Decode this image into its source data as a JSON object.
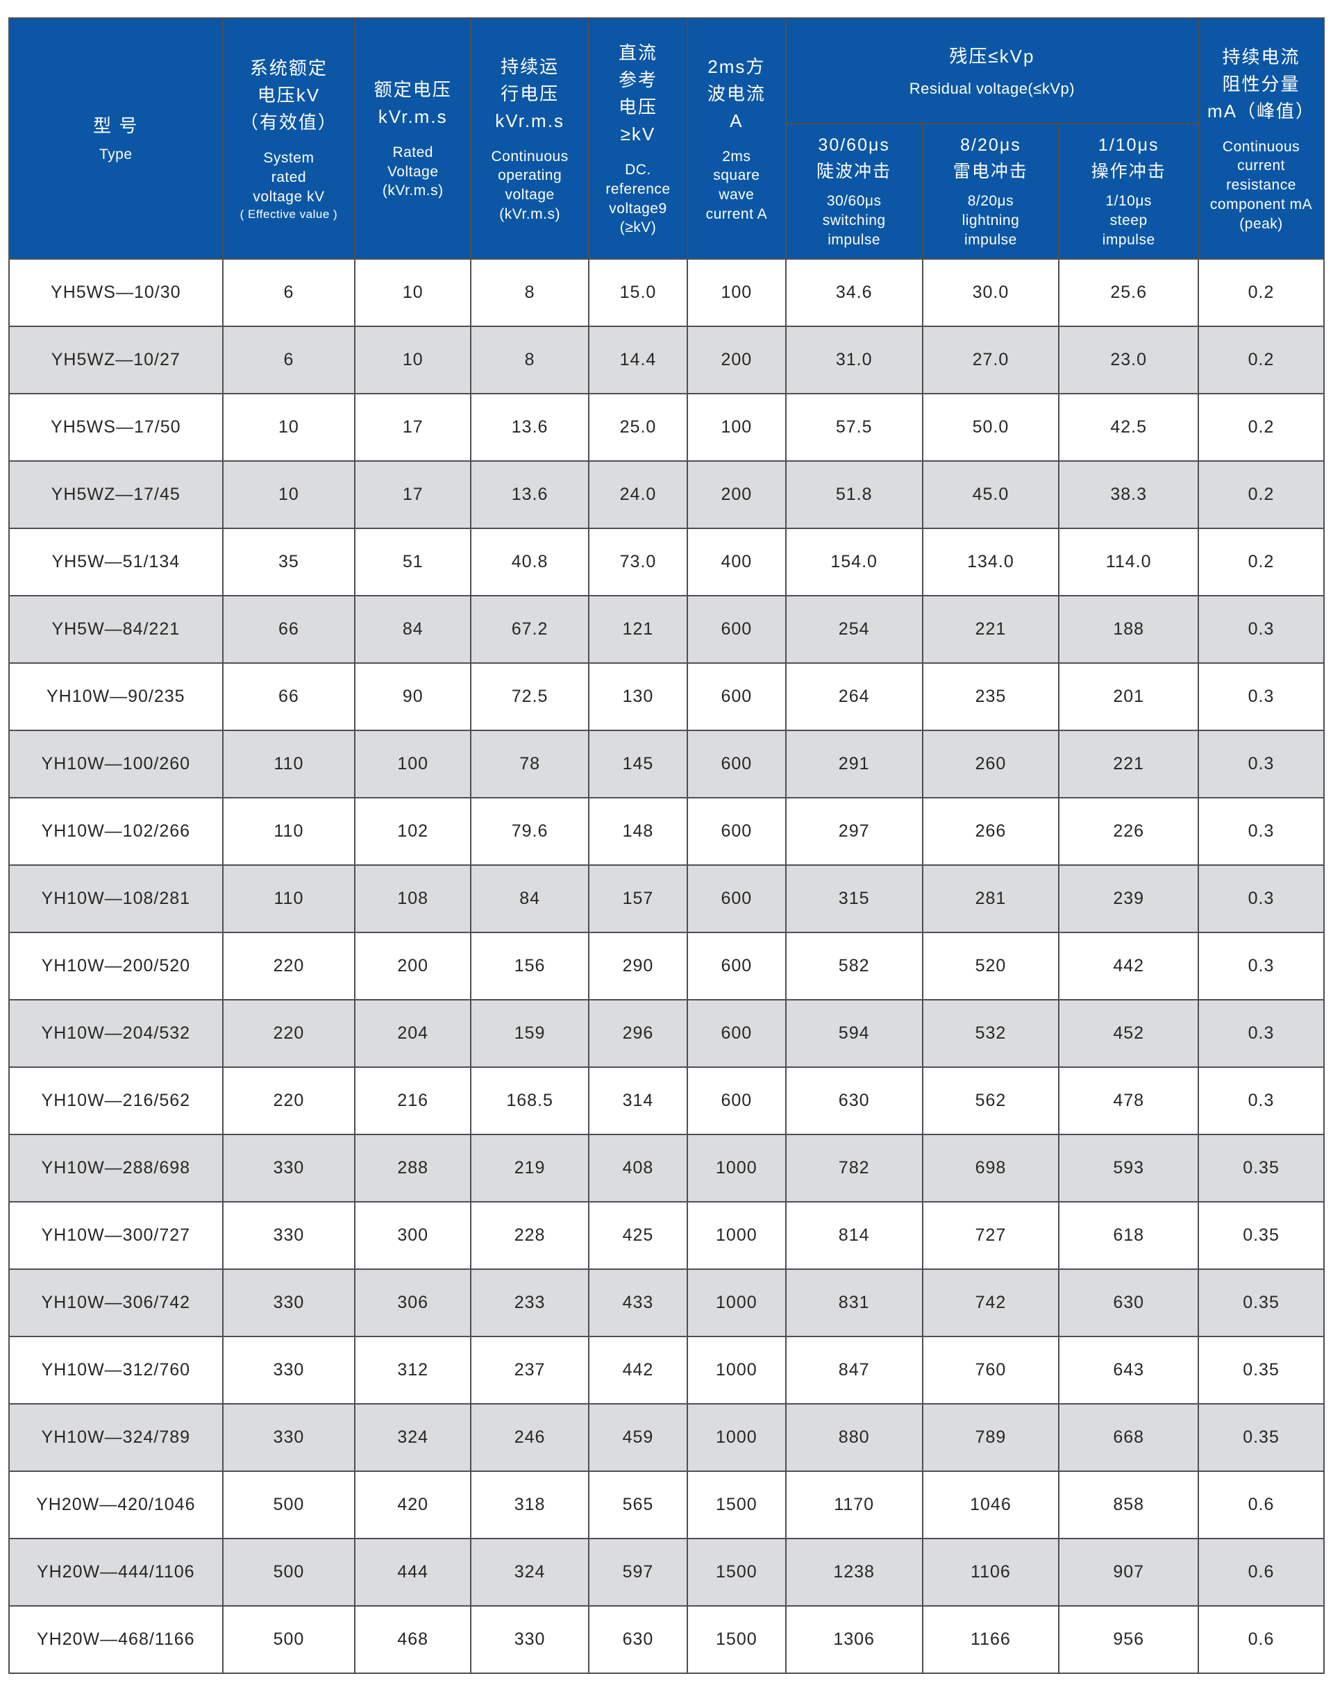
{
  "colors": {
    "header_bg": "#0c57a5",
    "header_text": "#ffffff",
    "row_bg": "#ffffff",
    "row_alt_bg": "#dbdcdd",
    "border": "#4d4f54",
    "cell_text": "#262626",
    "page_bg": "#ffffff"
  },
  "table": {
    "header": {
      "type": {
        "zh": "型 号",
        "en": "Type"
      },
      "system_rated_voltage": {
        "zh": "系统额定\n电压kV\n（有效值）",
        "en": "System\nrated\nvoltage kV",
        "en_small": "( Effective value )"
      },
      "rated_voltage": {
        "zh": "额定电压\nkVr.m.s",
        "en": "Rated\nVoltage\n(kVr.m.s)"
      },
      "continuous_operating_voltage": {
        "zh": "持续运\n行电压\nkVr.m.s",
        "en": "Continuous\noperating\nvoltage\n(kVr.m.s)"
      },
      "dc_reference_voltage": {
        "zh": "直流\n参考\n电压\n≥kV",
        "en": "DC.\nreference\nvoltage9\n(≥kV)"
      },
      "square_wave_current": {
        "zh": "2ms方\n波电流\nA",
        "en": "2ms\nsquare\nwave\ncurrent A"
      },
      "residual_voltage_group": {
        "zh": "残压≤kVp",
        "en": "Residual voltage(≤kVp)"
      },
      "switching_impulse": {
        "zh": "30/60μs\n陡波冲击",
        "en": "30/60μs\nswitching\nimpulse"
      },
      "lightning_impulse": {
        "zh": "8/20μs\n雷电冲击",
        "en": "8/20μs\nlightning\nimpulse"
      },
      "steep_impulse": {
        "zh": "1/10μs\n操作冲击",
        "en": "1/10μs\nsteep\nimpulse"
      },
      "continuous_current": {
        "zh": "持续电流\n阻性分量\nmA（峰值）",
        "en": "Continuous\ncurrent\nresistance\ncomponent mA\n(peak)"
      }
    },
    "rows": [
      [
        "YH5WS—10/30",
        "6",
        "10",
        "8",
        "15.0",
        "100",
        "34.6",
        "30.0",
        "25.6",
        "0.2"
      ],
      [
        "YH5WZ—10/27",
        "6",
        "10",
        "8",
        "14.4",
        "200",
        "31.0",
        "27.0",
        "23.0",
        "0.2"
      ],
      [
        "YH5WS—17/50",
        "10",
        "17",
        "13.6",
        "25.0",
        "100",
        "57.5",
        "50.0",
        "42.5",
        "0.2"
      ],
      [
        "YH5WZ—17/45",
        "10",
        "17",
        "13.6",
        "24.0",
        "200",
        "51.8",
        "45.0",
        "38.3",
        "0.2"
      ],
      [
        "YH5W—51/134",
        "35",
        "51",
        "40.8",
        "73.0",
        "400",
        "154.0",
        "134.0",
        "114.0",
        "0.2"
      ],
      [
        "YH5W—84/221",
        "66",
        "84",
        "67.2",
        "121",
        "600",
        "254",
        "221",
        "188",
        "0.3"
      ],
      [
        "YH10W—90/235",
        "66",
        "90",
        "72.5",
        "130",
        "600",
        "264",
        "235",
        "201",
        "0.3"
      ],
      [
        "YH10W—100/260",
        "110",
        "100",
        "78",
        "145",
        "600",
        "291",
        "260",
        "221",
        "0.3"
      ],
      [
        "YH10W—102/266",
        "110",
        "102",
        "79.6",
        "148",
        "600",
        "297",
        "266",
        "226",
        "0.3"
      ],
      [
        "YH10W—108/281",
        "110",
        "108",
        "84",
        "157",
        "600",
        "315",
        "281",
        "239",
        "0.3"
      ],
      [
        "YH10W—200/520",
        "220",
        "200",
        "156",
        "290",
        "600",
        "582",
        "520",
        "442",
        "0.3"
      ],
      [
        "YH10W—204/532",
        "220",
        "204",
        "159",
        "296",
        "600",
        "594",
        "532",
        "452",
        "0.3"
      ],
      [
        "YH10W—216/562",
        "220",
        "216",
        "168.5",
        "314",
        "600",
        "630",
        "562",
        "478",
        "0.3"
      ],
      [
        "YH10W—288/698",
        "330",
        "288",
        "219",
        "408",
        "1000",
        "782",
        "698",
        "593",
        "0.35"
      ],
      [
        "YH10W—300/727",
        "330",
        "300",
        "228",
        "425",
        "1000",
        "814",
        "727",
        "618",
        "0.35"
      ],
      [
        "YH10W—306/742",
        "330",
        "306",
        "233",
        "433",
        "1000",
        "831",
        "742",
        "630",
        "0.35"
      ],
      [
        "YH10W—312/760",
        "330",
        "312",
        "237",
        "442",
        "1000",
        "847",
        "760",
        "643",
        "0.35"
      ],
      [
        "YH10W—324/789",
        "330",
        "324",
        "246",
        "459",
        "1000",
        "880",
        "789",
        "668",
        "0.35"
      ],
      [
        "YH20W—420/1046",
        "500",
        "420",
        "318",
        "565",
        "1500",
        "1170",
        "1046",
        "858",
        "0.6"
      ],
      [
        "YH20W—444/1106",
        "500",
        "444",
        "324",
        "597",
        "1500",
        "1238",
        "1106",
        "907",
        "0.6"
      ],
      [
        "YH20W—468/1166",
        "500",
        "468",
        "330",
        "630",
        "1500",
        "1306",
        "1166",
        "956",
        "0.6"
      ]
    ]
  }
}
